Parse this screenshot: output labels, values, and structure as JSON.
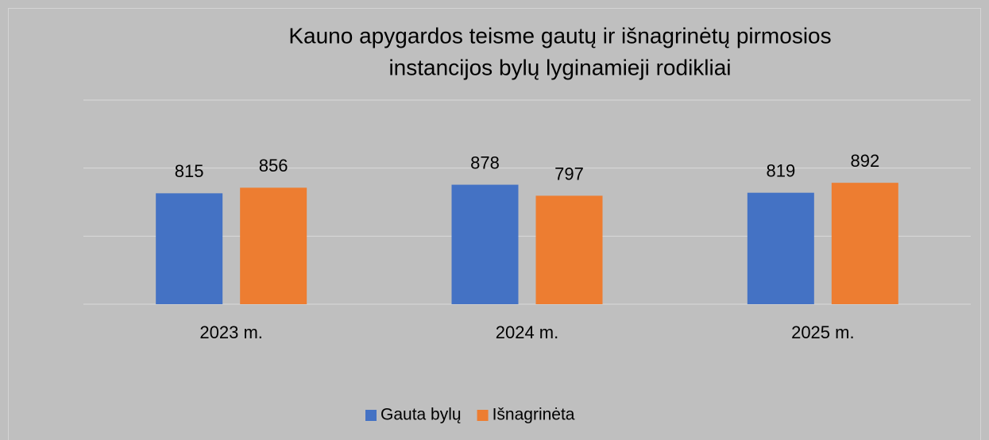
{
  "chart_data": {
    "type": "bar",
    "title": [
      "Kauno apygardos teisme gautų ir išnagrinėtų pirmosios",
      "instancijos bylų lyginamieji rodikliai"
    ],
    "categories": [
      "2023 m.",
      "2024 m.",
      "2025 m."
    ],
    "series": [
      {
        "name": "Gauta bylų",
        "color": "#4472c4",
        "values": [
          815,
          878,
          819
        ]
      },
      {
        "name": "Išnagrinėta",
        "color": "#ed7d31",
        "values": [
          856,
          797,
          892
        ]
      }
    ],
    "ylim": [
      0,
      1500
    ],
    "yticks": [
      0,
      500,
      1000,
      1500
    ],
    "grid": true,
    "legend": "bottom"
  }
}
